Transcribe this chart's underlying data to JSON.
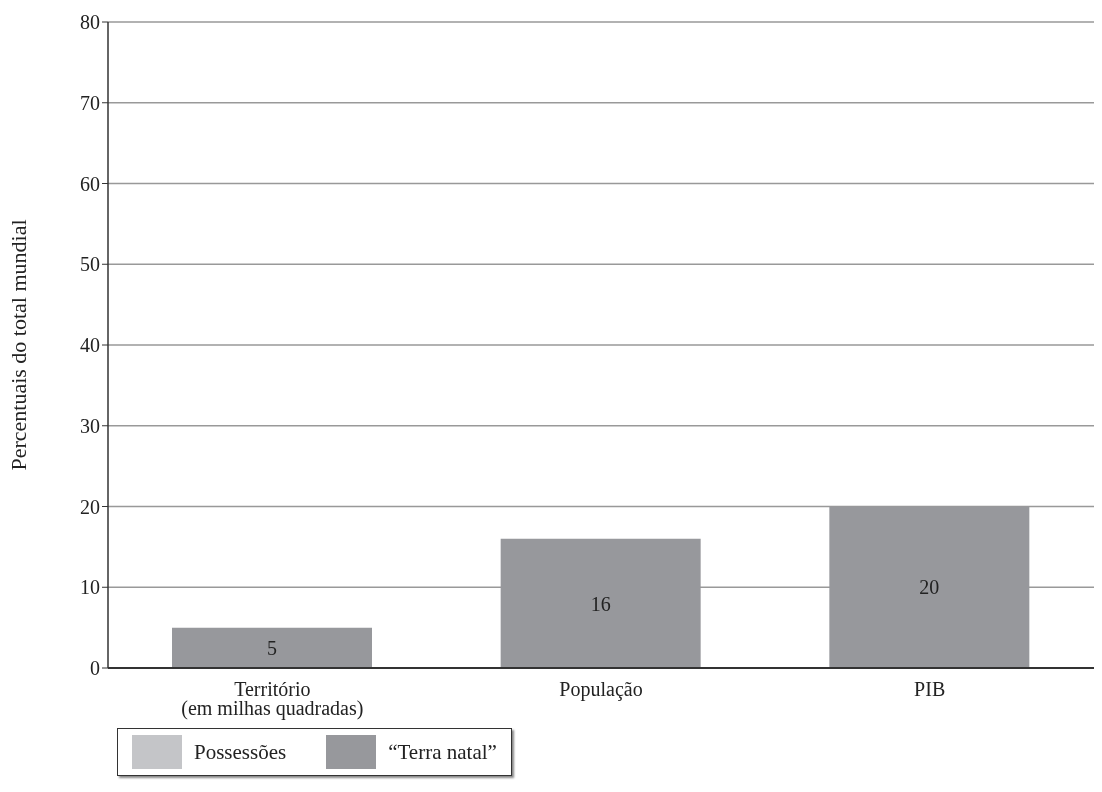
{
  "chart_data": {
    "type": "bar",
    "stacked": true,
    "ylabel": "Percentuais do total mundial",
    "categories": [
      "Território\n(em milhas quadradas)",
      "População",
      "PIB"
    ],
    "series": [
      {
        "name": "“Terra natal”",
        "color": "#97989c",
        "values": [
          5,
          16,
          20
        ],
        "value_labels": [
          "5",
          "16",
          "20"
        ]
      },
      {
        "name": "Possessões",
        "color": "#c4c5c8",
        "values": [
          null,
          null,
          null
        ]
      }
    ],
    "ylim": [
      0,
      80
    ],
    "yticks": [
      0,
      10,
      20,
      30,
      40,
      50,
      60,
      70,
      80
    ],
    "grid": "y",
    "legend": "bottom left"
  }
}
